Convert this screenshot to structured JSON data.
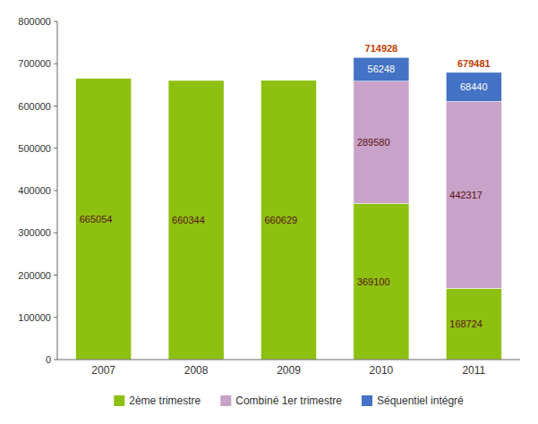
{
  "chart_data": {
    "type": "bar",
    "stacked": true,
    "data_labels": true,
    "grid": false,
    "legend": "bottom",
    "categories": [
      "2007",
      "2008",
      "2009",
      "2010",
      "2011"
    ],
    "series": [
      {
        "name": "2ème trimestre",
        "color": "#8DC011",
        "values": [
          665054,
          660344,
          660629,
          369100,
          168724
        ]
      },
      {
        "name": "Combiné 1er trimestre",
        "color": "#C8A2C8",
        "values": [
          0,
          0,
          0,
          289580,
          442317
        ]
      },
      {
        "name": "Séquentiel intégré",
        "color": "#4472C4",
        "values": [
          0,
          0,
          0,
          56248,
          68440
        ]
      }
    ],
    "totals": [
      null,
      null,
      null,
      714928,
      679481
    ],
    "ylim": [
      0,
      800000
    ],
    "yticks": [
      0,
      100000,
      200000,
      300000,
      400000,
      500000,
      600000,
      700000,
      800000
    ]
  }
}
